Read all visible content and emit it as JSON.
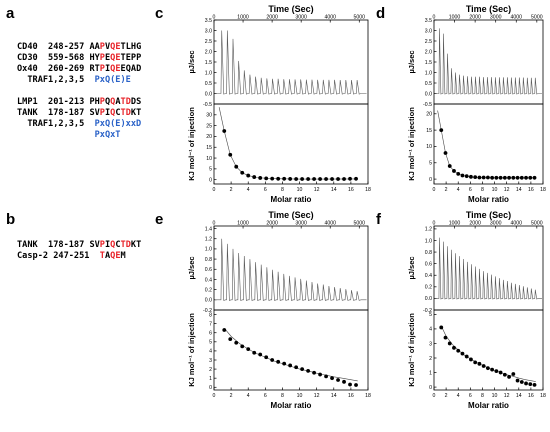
{
  "panel_labels": [
    "a",
    "b",
    "c",
    "d",
    "e",
    "f"
  ],
  "seq_a": [
    {
      "prefix": "CD40  248-257 ",
      "segs": [
        [
          "AA",
          "k"
        ],
        [
          "P",
          "r"
        ],
        [
          "V",
          "k"
        ],
        [
          "Q",
          "r"
        ],
        [
          "E",
          "r"
        ],
        [
          "TLHG",
          "k"
        ]
      ]
    },
    {
      "prefix": "CD30  559-568 ",
      "segs": [
        [
          "HY",
          "k"
        ],
        [
          "P",
          "r"
        ],
        [
          "E",
          "k"
        ],
        [
          "Q",
          "r"
        ],
        [
          "E",
          "r"
        ],
        [
          "TEPP",
          "k"
        ]
      ]
    },
    {
      "prefix": "Ox40  260-269 ",
      "segs": [
        [
          "RT",
          "k"
        ],
        [
          "P",
          "r"
        ],
        [
          "I",
          "k"
        ],
        [
          "Q",
          "r"
        ],
        [
          "E",
          "r"
        ],
        [
          "EQAD",
          "k"
        ]
      ]
    },
    {
      "prefix": "  TRAF1,2,3,5  ",
      "segs": [
        [
          "PxQ(E)E",
          "b"
        ]
      ]
    },
    {
      "prefix": "",
      "segs": []
    },
    {
      "prefix": "LMP1  201-213 ",
      "segs": [
        [
          "PH",
          "k"
        ],
        [
          "P",
          "r"
        ],
        [
          "Q",
          "k"
        ],
        [
          "Q",
          "r"
        ],
        [
          "A",
          "k"
        ],
        [
          "T",
          "r"
        ],
        [
          "D",
          "r"
        ],
        [
          "DS",
          "k"
        ]
      ]
    },
    {
      "prefix": "TANK  178-187 ",
      "segs": [
        [
          "SV",
          "k"
        ],
        [
          "P",
          "r"
        ],
        [
          "I",
          "k"
        ],
        [
          "Q",
          "r"
        ],
        [
          "C",
          "k"
        ],
        [
          "T",
          "r"
        ],
        [
          "D",
          "r"
        ],
        [
          "KT",
          "k"
        ]
      ]
    },
    {
      "prefix": "  TRAF1,2,3,5  ",
      "segs": [
        [
          "PxQ(E)xxD",
          "b"
        ]
      ]
    },
    {
      "prefix": "               ",
      "segs": [
        [
          "PxQxT",
          "b"
        ]
      ]
    }
  ],
  "seq_b": [
    {
      "prefix": "TANK  178-187 ",
      "segs": [
        [
          "SV",
          "k"
        ],
        [
          "P",
          "r"
        ],
        [
          "I",
          "k"
        ],
        [
          "Q",
          "r"
        ],
        [
          "C",
          "k"
        ],
        [
          "T",
          "r"
        ],
        [
          "D",
          "r"
        ],
        [
          "KT",
          "k"
        ]
      ]
    },
    {
      "prefix": "Casp-2 247-251  ",
      "segs": [
        [
          "T",
          "r"
        ],
        [
          "A",
          "k"
        ],
        [
          "Q",
          "r"
        ],
        [
          "E",
          "r"
        ],
        [
          "M",
          "k"
        ]
      ]
    }
  ],
  "axis_text": {
    "time_label": "Time (Sec)",
    "ucal_label": "µJ/sec",
    "kj_label": "KJ mol⁻¹ of injection",
    "molar_label": "Molar ratio"
  },
  "chart_data": [
    {
      "type": "scatter",
      "panel": "c",
      "top": {
        "x_label": "Time (Sec)",
        "x_ticks": [
          0,
          1000,
          2000,
          3000,
          4000,
          5000
        ],
        "xlim": [
          0,
          5300
        ],
        "y_label": "µJ/sec",
        "y_ticks": [
          3.5,
          3.0,
          2.5,
          2.0,
          1.5,
          1.0,
          0.5,
          0.0,
          -0.5
        ],
        "ylim": [
          -0.5,
          3.5
        ],
        "baseline": 0.0,
        "injection_peaks": [
          3.0,
          3.0,
          2.6,
          1.55,
          1.1,
          0.9,
          0.8,
          0.75,
          0.72,
          0.7,
          0.7,
          0.68,
          0.68,
          0.67,
          0.67,
          0.66,
          0.66,
          0.65,
          0.65,
          0.65,
          0.65,
          0.64,
          0.64,
          0.64,
          0.64
        ]
      },
      "bottom": {
        "x_label": "Molar ratio",
        "x_ticks": [
          0,
          2,
          4,
          6,
          8,
          10,
          12,
          14,
          16,
          18
        ],
        "xlim": [
          0,
          18
        ],
        "y_label": "KJ mol⁻¹ of injection",
        "y_ticks": [
          30,
          25,
          20,
          15,
          10,
          5,
          0
        ],
        "ylim": [
          -2,
          35
        ],
        "points": [
          [
            1.2,
            22.5
          ],
          [
            1.9,
            11.5
          ],
          [
            2.6,
            6.0
          ],
          [
            3.3,
            3.2
          ],
          [
            4.0,
            1.9
          ],
          [
            4.7,
            1.2
          ],
          [
            5.4,
            0.8
          ],
          [
            6.1,
            0.6
          ],
          [
            6.8,
            0.5
          ],
          [
            7.5,
            0.4
          ],
          [
            8.2,
            0.4
          ],
          [
            8.9,
            0.35
          ],
          [
            9.6,
            0.3
          ],
          [
            10.3,
            0.3
          ],
          [
            11.0,
            0.3
          ],
          [
            11.7,
            0.3
          ],
          [
            12.4,
            0.3
          ],
          [
            13.1,
            0.3
          ],
          [
            13.8,
            0.3
          ],
          [
            14.5,
            0.3
          ],
          [
            15.2,
            0.3
          ],
          [
            15.9,
            0.4
          ],
          [
            16.6,
            0.4
          ]
        ],
        "fit": [
          [
            0.6,
            33.5
          ],
          [
            1.2,
            22.5
          ],
          [
            1.9,
            11.5
          ],
          [
            2.6,
            6.0
          ],
          [
            3.3,
            3.2
          ],
          [
            4.0,
            1.9
          ],
          [
            5.0,
            1.0
          ],
          [
            6.5,
            0.5
          ],
          [
            8.0,
            0.4
          ],
          [
            10.0,
            0.3
          ],
          [
            13.0,
            0.3
          ],
          [
            16.8,
            0.35
          ]
        ]
      }
    },
    {
      "type": "scatter",
      "panel": "d",
      "top": {
        "x_label": "Time (Sec)",
        "x_ticks": [
          0,
          1000,
          2000,
          3000,
          4000,
          5000
        ],
        "xlim": [
          0,
          5300
        ],
        "y_label": "µJ/sec",
        "y_ticks": [
          3.5,
          3.0,
          2.5,
          2.0,
          1.5,
          1.0,
          0.5,
          0.0,
          -0.5
        ],
        "ylim": [
          -0.5,
          3.5
        ],
        "baseline": 0.0,
        "injection_peaks": [
          3.1,
          2.85,
          1.9,
          1.2,
          1.0,
          0.9,
          0.85,
          0.82,
          0.8,
          0.8,
          0.8,
          0.78,
          0.78,
          0.78,
          0.77,
          0.77,
          0.77,
          0.77,
          0.76,
          0.76,
          0.76,
          0.76,
          0.75,
          0.75,
          0.75
        ]
      },
      "bottom": {
        "x_label": "Molar ratio",
        "x_ticks": [
          0,
          2,
          4,
          6,
          8,
          10,
          12,
          14,
          16,
          18
        ],
        "xlim": [
          0,
          18
        ],
        "y_label": "KJ mol⁻¹ of injection",
        "y_ticks": [
          20,
          15,
          10,
          5,
          0
        ],
        "ylim": [
          -1.5,
          23
        ],
        "points": [
          [
            1.2,
            15.0
          ],
          [
            1.9,
            8.0
          ],
          [
            2.6,
            4.0
          ],
          [
            3.3,
            2.5
          ],
          [
            4.0,
            1.6
          ],
          [
            4.7,
            1.1
          ],
          [
            5.4,
            0.9
          ],
          [
            6.1,
            0.7
          ],
          [
            6.8,
            0.6
          ],
          [
            7.5,
            0.5
          ],
          [
            8.2,
            0.5
          ],
          [
            8.9,
            0.5
          ],
          [
            9.6,
            0.4
          ],
          [
            10.3,
            0.4
          ],
          [
            11.0,
            0.4
          ],
          [
            11.7,
            0.4
          ],
          [
            12.4,
            0.4
          ],
          [
            13.1,
            0.4
          ],
          [
            13.8,
            0.4
          ],
          [
            14.5,
            0.4
          ],
          [
            15.2,
            0.4
          ],
          [
            15.9,
            0.4
          ],
          [
            16.6,
            0.4
          ]
        ],
        "fit": [
          [
            0.6,
            21.0
          ],
          [
            1.2,
            15.0
          ],
          [
            1.9,
            8.0
          ],
          [
            2.6,
            4.0
          ],
          [
            3.3,
            2.5
          ],
          [
            4.0,
            1.6
          ],
          [
            5.0,
            1.0
          ],
          [
            6.5,
            0.6
          ],
          [
            8.0,
            0.5
          ],
          [
            10.0,
            0.4
          ],
          [
            13.0,
            0.4
          ],
          [
            16.8,
            0.4
          ]
        ]
      }
    },
    {
      "type": "scatter",
      "panel": "e",
      "top": {
        "x_label": "Time (Sec)",
        "x_ticks": [
          0,
          1000,
          2000,
          3000,
          4000,
          5000
        ],
        "xlim": [
          0,
          5300
        ],
        "y_label": "µJ/sec",
        "y_ticks": [
          1.4,
          1.2,
          1.0,
          0.8,
          0.6,
          0.4,
          0.2,
          0.0,
          -0.2
        ],
        "ylim": [
          -0.2,
          1.45
        ],
        "baseline": 0.0,
        "injection_peaks": [
          1.2,
          1.1,
          1.0,
          0.92,
          0.86,
          0.8,
          0.74,
          0.69,
          0.64,
          0.59,
          0.55,
          0.51,
          0.47,
          0.44,
          0.41,
          0.38,
          0.35,
          0.32,
          0.3,
          0.27,
          0.25,
          0.23,
          0.21,
          0.19,
          0.17
        ]
      },
      "bottom": {
        "x_label": "Molar ratio",
        "x_ticks": [
          0,
          2,
          4,
          6,
          8,
          10,
          12,
          14,
          16,
          18
        ],
        "xlim": [
          0,
          18
        ],
        "y_label": "KJ mol⁻¹ of injection",
        "y_ticks": [
          8,
          7,
          6,
          5,
          4,
          3,
          2,
          1,
          0
        ],
        "ylim": [
          -0.3,
          8.5
        ],
        "points": [
          [
            1.2,
            6.3
          ],
          [
            1.9,
            5.3
          ],
          [
            2.6,
            4.9
          ],
          [
            3.3,
            4.5
          ],
          [
            4.0,
            4.2
          ],
          [
            4.7,
            3.8
          ],
          [
            5.4,
            3.6
          ],
          [
            6.1,
            3.3
          ],
          [
            6.8,
            3.0
          ],
          [
            7.5,
            2.8
          ],
          [
            8.2,
            2.6
          ],
          [
            8.9,
            2.4
          ],
          [
            9.6,
            2.2
          ],
          [
            10.3,
            2.0
          ],
          [
            11.0,
            1.8
          ],
          [
            11.7,
            1.6
          ],
          [
            12.4,
            1.4
          ],
          [
            13.1,
            1.2
          ],
          [
            13.8,
            1.0
          ],
          [
            14.5,
            0.8
          ],
          [
            15.2,
            0.6
          ],
          [
            15.9,
            0.3
          ],
          [
            16.6,
            0.25
          ]
        ],
        "fit": [
          [
            1.2,
            6.5
          ],
          [
            2.0,
            5.6
          ],
          [
            3.0,
            4.8
          ],
          [
            4.0,
            4.2
          ],
          [
            5.0,
            3.7
          ],
          [
            6.0,
            3.3
          ],
          [
            7.0,
            2.9
          ],
          [
            8.0,
            2.6
          ],
          [
            9.0,
            2.3
          ],
          [
            10.0,
            2.0
          ],
          [
            11.0,
            1.8
          ],
          [
            12.0,
            1.55
          ],
          [
            13.0,
            1.35
          ],
          [
            14.0,
            1.15
          ],
          [
            15.0,
            1.0
          ],
          [
            16.8,
            0.7
          ]
        ]
      }
    },
    {
      "type": "scatter",
      "panel": "f",
      "top": {
        "x_label": "Time (Sec)",
        "x_ticks": [
          0,
          1000,
          2000,
          3000,
          4000,
          5000
        ],
        "xlim": [
          0,
          5300
        ],
        "y_label": "µJ/sec",
        "y_ticks": [
          1.2,
          1.0,
          0.8,
          0.6,
          0.4,
          0.2,
          0.0,
          -0.2
        ],
        "ylim": [
          -0.2,
          1.25
        ],
        "baseline": 0.0,
        "injection_peaks": [
          1.05,
          0.98,
          0.9,
          0.84,
          0.78,
          0.73,
          0.68,
          0.63,
          0.59,
          0.55,
          0.51,
          0.47,
          0.44,
          0.41,
          0.38,
          0.35,
          0.32,
          0.3,
          0.27,
          0.25,
          0.23,
          0.21,
          0.19,
          0.17,
          0.15
        ]
      },
      "bottom": {
        "x_label": "Molar ratio",
        "x_ticks": [
          0,
          2,
          4,
          6,
          8,
          10,
          12,
          14,
          16,
          18
        ],
        "xlim": [
          0,
          18
        ],
        "y_label": "KJ mol⁻¹ of injection",
        "y_ticks": [
          5,
          4,
          3,
          2,
          1,
          0
        ],
        "ylim": [
          -0.2,
          5.3
        ],
        "points": [
          [
            1.2,
            4.1
          ],
          [
            1.9,
            3.4
          ],
          [
            2.6,
            3.0
          ],
          [
            3.3,
            2.7
          ],
          [
            4.0,
            2.5
          ],
          [
            4.7,
            2.3
          ],
          [
            5.4,
            2.1
          ],
          [
            6.1,
            1.9
          ],
          [
            6.8,
            1.7
          ],
          [
            7.5,
            1.6
          ],
          [
            8.2,
            1.45
          ],
          [
            8.9,
            1.3
          ],
          [
            9.6,
            1.2
          ],
          [
            10.3,
            1.1
          ],
          [
            11.0,
            1.0
          ],
          [
            11.7,
            0.85
          ],
          [
            12.4,
            0.7
          ],
          [
            13.1,
            0.9
          ],
          [
            13.8,
            0.45
          ],
          [
            14.5,
            0.35
          ],
          [
            15.2,
            0.25
          ],
          [
            15.9,
            0.2
          ],
          [
            16.6,
            0.15
          ]
        ],
        "fit": [
          [
            1.2,
            4.2
          ],
          [
            2.0,
            3.5
          ],
          [
            3.0,
            2.95
          ],
          [
            4.0,
            2.55
          ],
          [
            5.0,
            2.2
          ],
          [
            6.0,
            1.95
          ],
          [
            7.0,
            1.7
          ],
          [
            8.0,
            1.5
          ],
          [
            9.0,
            1.3
          ],
          [
            10.0,
            1.15
          ],
          [
            11.0,
            1.0
          ],
          [
            12.0,
            0.85
          ],
          [
            13.0,
            0.75
          ],
          [
            14.0,
            0.62
          ],
          [
            15.0,
            0.52
          ],
          [
            16.8,
            0.38
          ]
        ]
      }
    }
  ]
}
